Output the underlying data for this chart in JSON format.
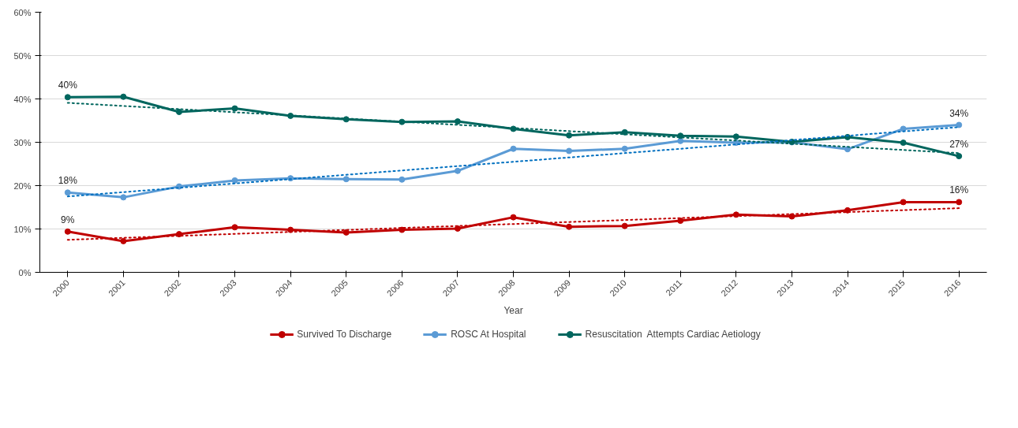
{
  "chart_data": {
    "type": "line",
    "xlabel": "Year",
    "categories": [
      "2000",
      "2001",
      "2002",
      "2003",
      "2004",
      "2005",
      "2006",
      "2007",
      "2008",
      "2009",
      "2010",
      "2011",
      "2012",
      "2013",
      "2014",
      "2015",
      "2016"
    ],
    "series": [
      {
        "name": "Survived To Discharge",
        "color": "#c00000",
        "values": [
          9.4,
          7.2,
          8.8,
          10.4,
          9.8,
          9.2,
          9.8,
          10.1,
          12.7,
          10.5,
          10.7,
          11.9,
          13.3,
          12.9,
          14.3,
          16.2,
          16.2
        ],
        "value_labels": [
          "9%",
          null,
          null,
          null,
          null,
          null,
          null,
          null,
          null,
          null,
          null,
          null,
          null,
          null,
          null,
          null,
          "16%"
        ],
        "marker": "circle",
        "line_style": "solid"
      },
      {
        "name": "ROSC At Hospital",
        "color": "#5b9bd5",
        "values": [
          18.4,
          17.3,
          19.8,
          21.2,
          21.7,
          21.5,
          21.4,
          23.4,
          28.5,
          28.0,
          28.5,
          30.3,
          29.9,
          30.0,
          28.4,
          33.1,
          34.0
        ],
        "value_labels": [
          "18%",
          null,
          null,
          null,
          null,
          null,
          null,
          null,
          null,
          null,
          null,
          null,
          null,
          null,
          null,
          null,
          "34%"
        ],
        "marker": "circle",
        "line_style": "solid"
      },
      {
        "name": "Resuscitation  Attempts Cardiac Aetiology",
        "color": "#00665e",
        "values": [
          40.4,
          40.5,
          37.0,
          37.8,
          36.1,
          35.3,
          34.7,
          34.8,
          33.1,
          31.6,
          32.3,
          31.5,
          31.3,
          30.1,
          31.2,
          29.9,
          26.8
        ],
        "value_labels": [
          "40%",
          null,
          null,
          null,
          null,
          null,
          null,
          null,
          null,
          null,
          null,
          null,
          null,
          null,
          null,
          null,
          "27%"
        ],
        "marker": "circle",
        "line_style": "solid"
      },
      {
        "color": "#c00000",
        "values": [
          7.5,
          null,
          null,
          null,
          null,
          null,
          null,
          null,
          null,
          null,
          null,
          null,
          null,
          null,
          null,
          null,
          14.8
        ],
        "marker": "none",
        "line_style": "dotted"
      },
      {
        "color": "#0070c0",
        "values": [
          17.5,
          null,
          null,
          null,
          null,
          null,
          null,
          null,
          null,
          null,
          null,
          null,
          null,
          null,
          null,
          null,
          33.5
        ],
        "marker": "none",
        "line_style": "dotted"
      },
      {
        "color": "#00665e",
        "values": [
          39.1,
          null,
          null,
          null,
          null,
          null,
          null,
          null,
          null,
          null,
          null,
          null,
          null,
          null,
          null,
          null,
          27.5
        ],
        "marker": "none",
        "line_style": "dotted"
      }
    ],
    "ylim": [
      0,
      60
    ],
    "yticks": [
      {
        "value": 0,
        "label": "0%"
      },
      {
        "value": 10,
        "label": "10%"
      },
      {
        "value": 20,
        "label": "20%"
      },
      {
        "value": 30,
        "label": "30%"
      },
      {
        "value": 40,
        "label": "40%"
      },
      {
        "value": 50,
        "label": "50%"
      },
      {
        "value": 60,
        "label": "60%"
      }
    ],
    "grid": "y",
    "legend": "bottom"
  }
}
